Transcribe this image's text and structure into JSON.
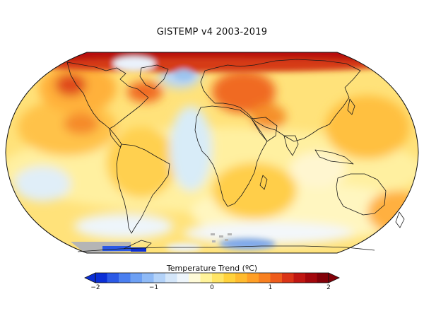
{
  "title": "GISTEMP v4 2003-2019",
  "colorbar": {
    "title": "Temperature Trend (ºC)",
    "ticks": [
      "−2",
      "−1",
      "0",
      "1",
      "2"
    ],
    "range": [
      -2,
      2
    ],
    "colors": [
      "#0b2fd6",
      "#2b59e6",
      "#4a7ff0",
      "#6da0f4",
      "#8fbaf6",
      "#b3d2f8",
      "#d4e6f9",
      "#eef5fb",
      "#fffbd8",
      "#fff39a",
      "#ffe566",
      "#ffd23c",
      "#ffbb2e",
      "#ff9f26",
      "#f88020",
      "#ee5c1c",
      "#da3417",
      "#c01612",
      "#a3070c",
      "#820008"
    ]
  },
  "map": {
    "projection": "Robinson",
    "no_data_color": "#b5b5b5"
  }
}
